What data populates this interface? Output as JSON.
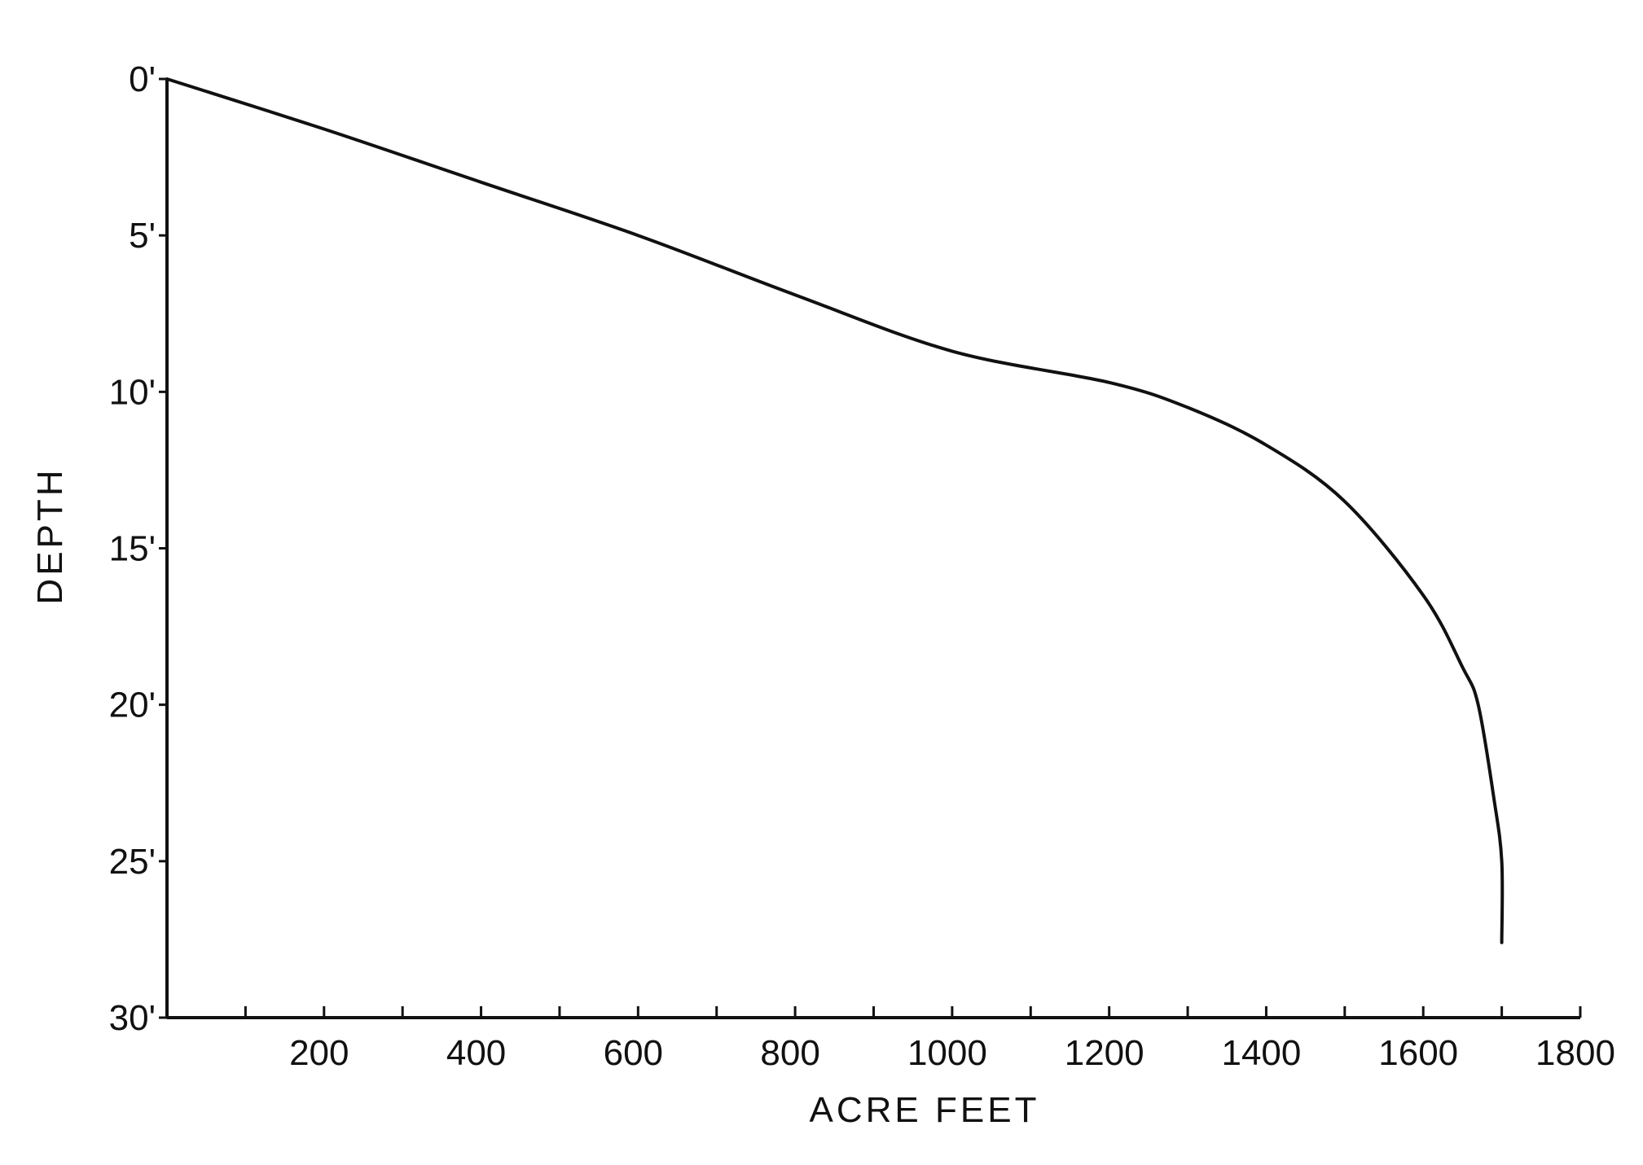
{
  "chart_data": {
    "type": "line",
    "title": "",
    "xlabel": "ACRE FEET",
    "ylabel": "DEPTH",
    "xlim": [
      0,
      1800
    ],
    "ylim": [
      30,
      0
    ],
    "y_inverted": true,
    "x_ticks": [
      200,
      400,
      600,
      800,
      1000,
      1200,
      1400,
      1600,
      1800
    ],
    "x_tick_labels": [
      "200",
      "400",
      "600",
      "800",
      "1000",
      "1200",
      "1400",
      "1600",
      "1800"
    ],
    "y_ticks": [
      0,
      5,
      10,
      15,
      20,
      25,
      30
    ],
    "y_tick_labels": [
      "0'",
      "5'",
      "10'",
      "15'",
      "20'",
      "25'",
      "30'"
    ],
    "grid": false,
    "series": [
      {
        "x": [
          0,
          200,
          400,
          600,
          800,
          1000,
          1200,
          1300,
          1400,
          1500,
          1600,
          1650,
          1670,
          1690,
          1700,
          1700
        ],
        "y": [
          0,
          1.6,
          3.3,
          5.0,
          6.9,
          8.7,
          9.7,
          10.5,
          11.7,
          13.5,
          16.5,
          18.8,
          20.0,
          23.0,
          25.0,
          27.6
        ]
      }
    ],
    "color": "#111111"
  }
}
